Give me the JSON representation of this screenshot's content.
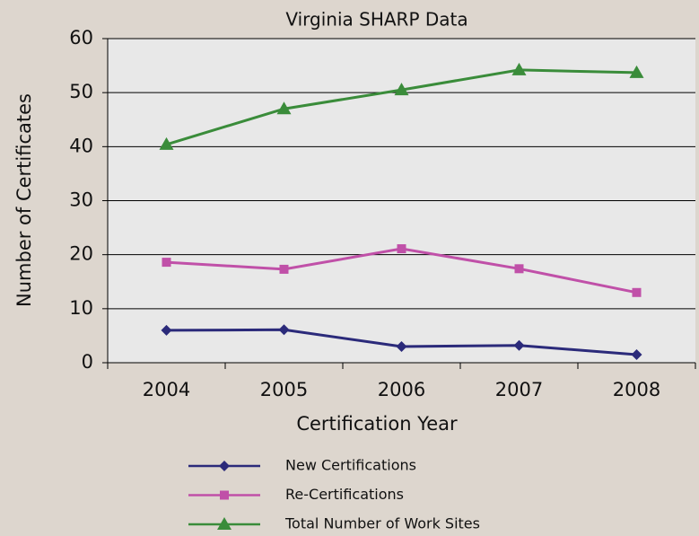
{
  "chart_data": {
    "type": "line",
    "title": "Virginia SHARP Data",
    "x_label": "Certification Year",
    "y_label": "Number of Certificates",
    "categories": [
      "2004",
      "2005",
      "2006",
      "2007",
      "2008"
    ],
    "series": [
      {
        "name": "New Certifications",
        "color": "#2b2a7a",
        "marker": "diamond",
        "values": [
          6.0,
          6.1,
          3.0,
          3.2,
          1.5
        ]
      },
      {
        "name": "Re-Certifications",
        "color": "#c050a8",
        "marker": "square",
        "values": [
          18.6,
          17.3,
          21.1,
          17.4,
          13.0
        ]
      },
      {
        "name": "Total Number of Work Sites",
        "color": "#3a8c3a",
        "marker": "triangle",
        "values": [
          40.4,
          47.0,
          50.5,
          54.2,
          53.7
        ]
      }
    ],
    "ylim": [
      0,
      60
    ],
    "yticks": [
      0,
      10,
      20,
      30,
      40,
      50,
      60
    ],
    "grid": true,
    "legend": "bottom"
  }
}
